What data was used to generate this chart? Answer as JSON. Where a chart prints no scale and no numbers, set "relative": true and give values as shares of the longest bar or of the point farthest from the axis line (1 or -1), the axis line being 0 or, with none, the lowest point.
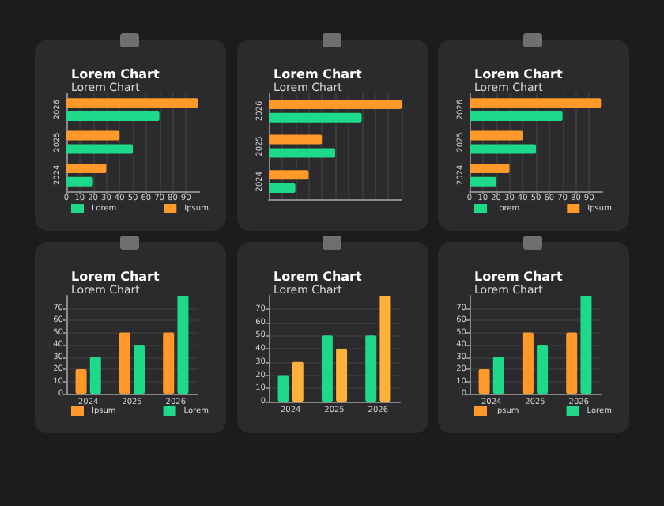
{
  "chart_data": [
    {
      "type": "bar",
      "orientation": "horizontal",
      "title": "Lorem Chart",
      "subtitle": "Lorem Chart",
      "categories": [
        "2026",
        "2025",
        "2024"
      ],
      "series": [
        {
          "name": "Lorem",
          "color": "#1fd98b",
          "values": [
            70,
            50,
            20
          ]
        },
        {
          "name": "Ipsum",
          "color": "#ff9a2a",
          "values": [
            99,
            40,
            30
          ]
        }
      ],
      "xlim": [
        0,
        100
      ],
      "xticks": [
        0,
        10,
        20,
        30,
        40,
        50,
        60,
        70,
        80,
        90
      ],
      "grid": "x",
      "legend": "bottom"
    },
    {
      "type": "bar",
      "orientation": "horizontal",
      "title": "Lorem Chart",
      "subtitle": "Lorem Chart",
      "categories": [
        "2026",
        "2025",
        "2024"
      ],
      "relative": true,
      "series": [
        {
          "color": "#1fd98b",
          "values": [
            0.7,
            0.5,
            0.2
          ]
        },
        {
          "color": "#ff9a2a",
          "values": [
            1,
            0.4,
            0.3
          ]
        }
      ],
      "grid": "x"
    },
    {
      "type": "bar",
      "orientation": "horizontal",
      "title": "Lorem Chart",
      "subtitle": "Lorem Chart",
      "categories": [
        "2026",
        "2025",
        "2024"
      ],
      "series": [
        {
          "name": "Lorem",
          "color": "#1fd98b",
          "values": [
            70,
            50,
            20
          ]
        },
        {
          "name": "Ipsum",
          "color": "#ff9a2a",
          "values": [
            99,
            40,
            30
          ]
        }
      ],
      "xlim": [
        0,
        100
      ],
      "xticks": [
        0,
        10,
        20,
        30,
        40,
        50,
        60,
        70,
        80,
        90
      ],
      "grid": "x",
      "legend": "bottom"
    },
    {
      "type": "bar",
      "title": "Lorem Chart",
      "subtitle": "Lorem Chart",
      "categories": [
        "2024",
        "2025",
        "2026"
      ],
      "series": [
        {
          "name": "Ipsum",
          "color": "#ff9a2a",
          "values": [
            20,
            50,
            50
          ]
        },
        {
          "name": "Lorem",
          "color": "#1fd98b",
          "values": [
            30,
            40,
            80
          ]
        }
      ],
      "ylim": [
        0,
        80
      ],
      "yticks": [
        0,
        10,
        20,
        30,
        40,
        50,
        60,
        70
      ],
      "grid": "y",
      "legend": "bottom"
    },
    {
      "type": "bar",
      "title": "Lorem Chart",
      "subtitle": "Lorem Chart",
      "categories": [
        "2024",
        "2025",
        "2026"
      ],
      "series": [
        {
          "color": "#1fd98b",
          "values": [
            20,
            50,
            50
          ]
        },
        {
          "color": "#ffb13a",
          "values": [
            30,
            40,
            80
          ]
        }
      ],
      "ylim": [
        0,
        80
      ],
      "yticks": [
        0,
        10,
        20,
        30,
        40,
        50,
        60,
        70
      ],
      "grid": "y"
    },
    {
      "type": "bar",
      "title": "Lorem Chart",
      "subtitle": "Lorem Chart",
      "categories": [
        "2024",
        "2025",
        "2026"
      ],
      "series": [
        {
          "name": "Ipsum",
          "color": "#ff9a2a",
          "values": [
            20,
            50,
            50
          ]
        },
        {
          "name": "Lorem",
          "color": "#1fd98b",
          "values": [
            30,
            40,
            80
          ]
        }
      ],
      "ylim": [
        0,
        80
      ],
      "yticks": [
        0,
        10,
        20,
        30,
        40,
        50,
        60,
        70
      ],
      "grid": "y",
      "legend": "bottom"
    }
  ]
}
